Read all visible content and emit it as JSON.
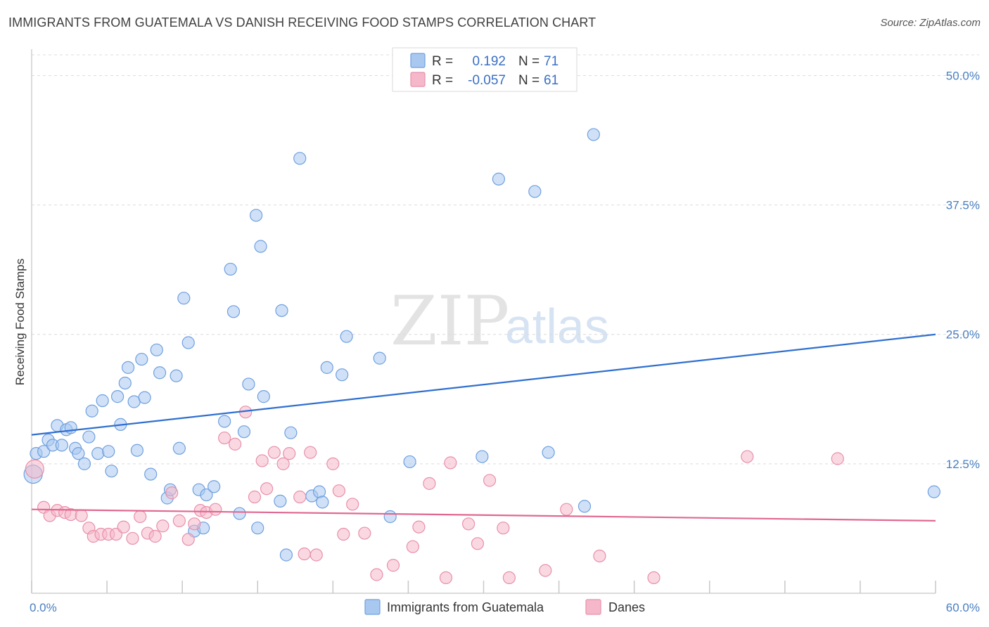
{
  "title": "IMMIGRANTS FROM GUATEMALA VS DANISH RECEIVING FOOD STAMPS CORRELATION CHART",
  "source": "Source: ZipAtlas.com",
  "watermark": {
    "zip": "ZIP",
    "atlas": "atlas"
  },
  "legend": {
    "rows": [
      {
        "r_label": "R =",
        "r_value": "0.192",
        "n_label": "N =",
        "n_value": "71",
        "color": "#a9c8f0"
      },
      {
        "r_label": "R =",
        "r_value": "-0.057",
        "n_label": "N =",
        "n_value": "61",
        "color": "#f5b8cb"
      }
    ]
  },
  "bottom_legend": [
    {
      "label": "Immigrants from Guatemala",
      "color": "#a9c8f0"
    },
    {
      "label": "Danes",
      "color": "#f5b8cb"
    }
  ],
  "chart_data": {
    "type": "scatter",
    "xlabel": "",
    "ylabel": "Receiving Food Stamps",
    "xlim": [
      0,
      60
    ],
    "ylim": [
      0,
      52
    ],
    "x_tick_labels": [
      {
        "value": 0,
        "label": "0.0%"
      },
      {
        "value": 60,
        "label": "60.0%"
      }
    ],
    "y_tick_labels": [
      {
        "value": 12.5,
        "label": "12.5%"
      },
      {
        "value": 25,
        "label": "25.0%"
      },
      {
        "value": 37.5,
        "label": "37.5%"
      },
      {
        "value": 50,
        "label": "50.0%"
      }
    ],
    "grid": "horizontal dashed",
    "legend_position": "top-center",
    "series": [
      {
        "name": "Immigrants from Guatemala",
        "color": "#6fa0e0",
        "fill": "#a9c8f0",
        "trend": {
          "x": [
            0,
            60
          ],
          "y": [
            15.3,
            25.0
          ],
          "color": "#2f6fcf"
        },
        "points": [
          [
            0.1,
            11.5
          ],
          [
            0.3,
            13.5
          ],
          [
            0.8,
            13.7
          ],
          [
            1.1,
            14.8
          ],
          [
            1.4,
            14.3
          ],
          [
            1.7,
            16.2
          ],
          [
            2.0,
            14.3
          ],
          [
            2.3,
            15.8
          ],
          [
            2.6,
            16.0
          ],
          [
            2.9,
            14.0
          ],
          [
            3.1,
            13.5
          ],
          [
            3.5,
            12.5
          ],
          [
            3.8,
            15.1
          ],
          [
            4.0,
            17.6
          ],
          [
            4.4,
            13.5
          ],
          [
            4.7,
            18.6
          ],
          [
            5.1,
            13.7
          ],
          [
            5.3,
            11.8
          ],
          [
            5.7,
            19.0
          ],
          [
            5.9,
            16.3
          ],
          [
            6.2,
            20.3
          ],
          [
            6.4,
            21.8
          ],
          [
            6.8,
            18.5
          ],
          [
            7.0,
            13.8
          ],
          [
            7.3,
            22.6
          ],
          [
            7.5,
            18.9
          ],
          [
            7.9,
            11.5
          ],
          [
            8.3,
            23.5
          ],
          [
            8.5,
            21.3
          ],
          [
            9.0,
            9.2
          ],
          [
            9.2,
            10.0
          ],
          [
            9.6,
            21.0
          ],
          [
            9.8,
            14.0
          ],
          [
            10.1,
            28.5
          ],
          [
            10.4,
            24.2
          ],
          [
            10.8,
            6.0
          ],
          [
            11.1,
            10.0
          ],
          [
            11.4,
            6.3
          ],
          [
            11.6,
            9.5
          ],
          [
            12.1,
            10.3
          ],
          [
            12.8,
            16.6
          ],
          [
            13.2,
            31.3
          ],
          [
            13.4,
            27.2
          ],
          [
            13.8,
            7.7
          ],
          [
            14.1,
            15.6
          ],
          [
            14.4,
            20.2
          ],
          [
            14.9,
            36.5
          ],
          [
            15.0,
            6.3
          ],
          [
            15.2,
            33.5
          ],
          [
            15.4,
            19.0
          ],
          [
            16.5,
            8.9
          ],
          [
            16.6,
            27.3
          ],
          [
            16.9,
            3.7
          ],
          [
            17.2,
            15.5
          ],
          [
            17.8,
            42.0
          ],
          [
            18.6,
            9.4
          ],
          [
            19.1,
            9.8
          ],
          [
            19.3,
            8.8
          ],
          [
            19.6,
            21.8
          ],
          [
            20.6,
            21.1
          ],
          [
            20.9,
            24.8
          ],
          [
            23.1,
            22.7
          ],
          [
            23.8,
            7.4
          ],
          [
            25.1,
            12.7
          ],
          [
            29.9,
            13.2
          ],
          [
            31.0,
            40.0
          ],
          [
            33.4,
            38.8
          ],
          [
            34.3,
            13.6
          ],
          [
            36.7,
            8.4
          ],
          [
            37.3,
            44.3
          ],
          [
            59.9,
            9.8
          ]
        ]
      },
      {
        "name": "Danes",
        "color": "#e890aa",
        "fill": "#f5b8cb",
        "trend": {
          "x": [
            0,
            60
          ],
          "y": [
            8.1,
            7.0
          ],
          "color": "#e06890"
        },
        "points": [
          [
            0.2,
            12.0
          ],
          [
            0.8,
            8.3
          ],
          [
            1.2,
            7.5
          ],
          [
            1.7,
            8.0
          ],
          [
            2.2,
            7.8
          ],
          [
            2.6,
            7.6
          ],
          [
            3.3,
            7.5
          ],
          [
            3.8,
            6.3
          ],
          [
            4.1,
            5.5
          ],
          [
            4.6,
            5.7
          ],
          [
            5.1,
            5.7
          ],
          [
            5.6,
            5.7
          ],
          [
            6.1,
            6.4
          ],
          [
            6.7,
            5.3
          ],
          [
            7.2,
            7.4
          ],
          [
            7.7,
            5.8
          ],
          [
            8.2,
            5.5
          ],
          [
            8.7,
            6.5
          ],
          [
            9.3,
            9.7
          ],
          [
            9.8,
            7.0
          ],
          [
            10.4,
            5.2
          ],
          [
            10.8,
            6.7
          ],
          [
            11.2,
            8.0
          ],
          [
            11.6,
            7.8
          ],
          [
            12.2,
            8.1
          ],
          [
            12.8,
            15.0
          ],
          [
            13.5,
            14.4
          ],
          [
            14.2,
            17.5
          ],
          [
            14.8,
            9.3
          ],
          [
            15.3,
            12.8
          ],
          [
            15.6,
            10.1
          ],
          [
            16.1,
            13.6
          ],
          [
            16.7,
            12.5
          ],
          [
            17.1,
            13.5
          ],
          [
            17.8,
            9.3
          ],
          [
            18.1,
            3.8
          ],
          [
            18.5,
            13.6
          ],
          [
            18.9,
            3.7
          ],
          [
            20.0,
            12.5
          ],
          [
            20.4,
            9.9
          ],
          [
            20.7,
            5.7
          ],
          [
            21.3,
            8.6
          ],
          [
            22.1,
            5.8
          ],
          [
            22.9,
            1.8
          ],
          [
            24.0,
            2.7
          ],
          [
            25.3,
            4.5
          ],
          [
            25.7,
            6.4
          ],
          [
            26.4,
            10.6
          ],
          [
            27.5,
            1.5
          ],
          [
            27.8,
            12.6
          ],
          [
            29.0,
            6.7
          ],
          [
            29.6,
            4.8
          ],
          [
            30.4,
            10.9
          ],
          [
            31.3,
            6.3
          ],
          [
            31.7,
            1.5
          ],
          [
            34.1,
            2.2
          ],
          [
            35.5,
            8.1
          ],
          [
            37.7,
            3.6
          ],
          [
            41.3,
            1.5
          ],
          [
            47.5,
            13.2
          ],
          [
            53.5,
            13.0
          ]
        ]
      }
    ]
  }
}
